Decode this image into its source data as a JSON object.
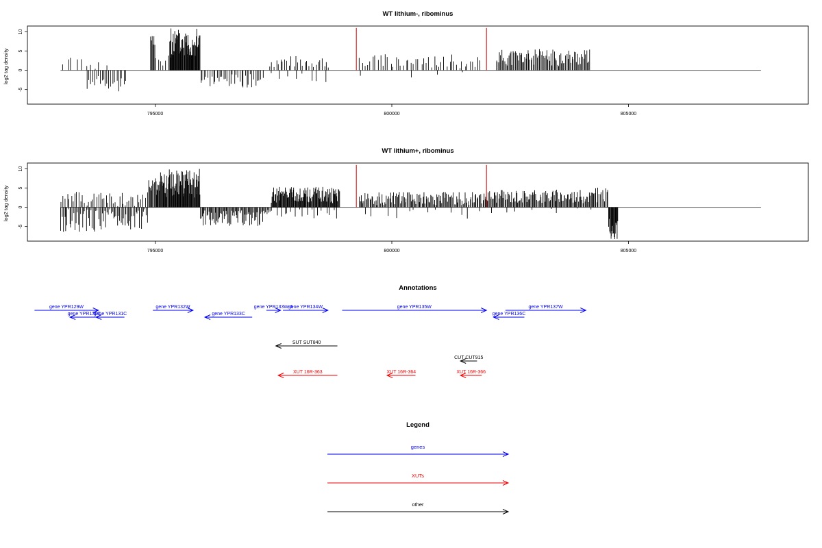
{
  "chart_data": [
    {
      "type": "bar",
      "title": "WT lithium-, ribominus",
      "ylabel": "log2 tag density",
      "xlim": [
        792300,
        808800
      ],
      "ylim": [
        -8.8,
        11.5
      ],
      "baseline_x": [
        793000,
        807800
      ],
      "yticks": [
        -5,
        0,
        5,
        10
      ],
      "ytick_labels": [
        "-5",
        "0",
        "5",
        "10"
      ],
      "xticks": [
        795000,
        800000,
        805000
      ],
      "xtick_labels": [
        "795000",
        "800000",
        "805000"
      ],
      "grid": false,
      "bar_color": "#000000",
      "red_markers": [
        799250,
        802000
      ],
      "red_marker_value": 11,
      "red_color": "#cc0000",
      "segments": [
        {
          "start": 793000,
          "end": 794000,
          "low": 0.3,
          "high": 3.5,
          "n": 10,
          "seed": 1
        },
        {
          "start": 793550,
          "end": 794400,
          "low": -5.5,
          "high": -1.5,
          "n": 22,
          "seed": 2
        },
        {
          "start": 794900,
          "end": 795000,
          "low": 5,
          "high": 9,
          "n": 6,
          "seed": 3
        },
        {
          "start": 795000,
          "end": 795300,
          "low": 0.5,
          "high": 4,
          "n": 6,
          "seed": 4
        },
        {
          "start": 795300,
          "end": 795950,
          "low": 3,
          "high": 11,
          "n": 60,
          "seed": 5
        },
        {
          "start": 795950,
          "end": 797300,
          "low": -4.5,
          "high": -1,
          "n": 36,
          "seed": 6
        },
        {
          "start": 797400,
          "end": 798700,
          "low": 0.5,
          "high": 3.8,
          "n": 28,
          "seed": 7
        },
        {
          "start": 797400,
          "end": 798700,
          "low": -3.5,
          "high": -0.5,
          "n": 8,
          "seed": 8
        },
        {
          "start": 799300,
          "end": 801900,
          "low": 0.5,
          "high": 4.2,
          "n": 48,
          "seed": 9
        },
        {
          "start": 799300,
          "end": 801900,
          "low": -2.5,
          "high": -0.5,
          "n": 4,
          "seed": 10
        },
        {
          "start": 802200,
          "end": 804200,
          "low": 1,
          "high": 5.5,
          "n": 90,
          "seed": 11
        }
      ]
    },
    {
      "type": "bar",
      "title": "WT lithium+, ribominus",
      "ylabel": "log2 tag density",
      "xlim": [
        792300,
        808800
      ],
      "ylim": [
        -8.8,
        11.5
      ],
      "baseline_x": [
        793000,
        807800
      ],
      "yticks": [
        -5,
        0,
        5,
        10
      ],
      "ytick_labels": [
        "-5",
        "0",
        "5",
        "10"
      ],
      "xticks": [
        795000,
        800000,
        805000
      ],
      "xtick_labels": [
        "795000",
        "800000",
        "805000"
      ],
      "grid": false,
      "bar_color": "#000000",
      "red_markers": [
        799250,
        802000
      ],
      "red_marker_value": 11,
      "red_color": "#cc0000",
      "segments": [
        {
          "start": 793000,
          "end": 794850,
          "low": 0.3,
          "high": 4,
          "n": 45,
          "seed": 21
        },
        {
          "start": 793000,
          "end": 794850,
          "low": -6.5,
          "high": -0.5,
          "n": 70,
          "seed": 22
        },
        {
          "start": 794850,
          "end": 795000,
          "low": 1,
          "high": 8,
          "n": 8,
          "seed": 23
        },
        {
          "start": 795000,
          "end": 795950,
          "low": 2.5,
          "high": 10,
          "n": 85,
          "seed": 24
        },
        {
          "start": 795950,
          "end": 797300,
          "low": -5,
          "high": -0.8,
          "n": 70,
          "seed": 25
        },
        {
          "start": 797300,
          "end": 797450,
          "low": -2,
          "high": -0.5,
          "n": 6,
          "seed": 26
        },
        {
          "start": 797450,
          "end": 798900,
          "low": 1,
          "high": 5.3,
          "n": 110,
          "seed": 27
        },
        {
          "start": 797450,
          "end": 798900,
          "low": -3,
          "high": -0.5,
          "n": 18,
          "seed": 28
        },
        {
          "start": 799300,
          "end": 802000,
          "low": 0.5,
          "high": 4,
          "n": 130,
          "seed": 29
        },
        {
          "start": 799300,
          "end": 802000,
          "low": -3,
          "high": -0.3,
          "n": 12,
          "seed": 30
        },
        {
          "start": 802000,
          "end": 804300,
          "low": 1,
          "high": 4.6,
          "n": 120,
          "seed": 31
        },
        {
          "start": 802000,
          "end": 804300,
          "low": -1.5,
          "high": -0.3,
          "n": 8,
          "seed": 32
        },
        {
          "start": 804300,
          "end": 804580,
          "low": 1,
          "high": 5.8,
          "n": 12,
          "seed": 33
        },
        {
          "start": 804580,
          "end": 804780,
          "low": -8.5,
          "high": -3,
          "n": 18,
          "seed": 34
        }
      ]
    },
    {
      "type": "annotation_track",
      "title": "Annotations",
      "xlim": [
        792300,
        808800
      ],
      "features": [
        {
          "label": "gene YPR129W",
          "start": 792450,
          "end": 793800,
          "strand": "+",
          "row": 0,
          "color": "#0000ee"
        },
        {
          "label": "gene YPR130C",
          "start": 793200,
          "end": 793800,
          "strand": "-",
          "row": 1,
          "color": "#0000ee"
        },
        {
          "label": "gene YPR131C",
          "start": 793750,
          "end": 794350,
          "strand": "-",
          "row": 1,
          "color": "#0000ee"
        },
        {
          "label": "gene YPR132W",
          "start": 794950,
          "end": 795800,
          "strand": "+",
          "row": 0,
          "color": "#0000ee"
        },
        {
          "label": "gene YPR133C",
          "start": 796050,
          "end": 797050,
          "strand": "-",
          "row": 1,
          "color": "#0000ee"
        },
        {
          "label": "gene YPR133W-A",
          "start": 797350,
          "end": 797650,
          "strand": "+",
          "row": 0,
          "color": "#0000ee"
        },
        {
          "label": "gene YPR134W",
          "start": 797700,
          "end": 798650,
          "strand": "+",
          "row": 0,
          "color": "#0000ee"
        },
        {
          "label": "gene YPR135W",
          "start": 798950,
          "end": 802000,
          "strand": "+",
          "row": 0,
          "color": "#0000ee"
        },
        {
          "label": "gene YPR136C",
          "start": 802150,
          "end": 802800,
          "strand": "-",
          "row": 1,
          "color": "#0000ee"
        },
        {
          "label": "gene YPR137W",
          "start": 802400,
          "end": 804100,
          "strand": "+",
          "row": 0,
          "color": "#0000ee"
        },
        {
          "label": "SUT SUT840",
          "start": 797550,
          "end": 798850,
          "strand": "-",
          "row": 3,
          "color": "#000000"
        },
        {
          "label": "CUT CUT915",
          "start": 801450,
          "end": 801800,
          "strand": "-",
          "row": 4,
          "color": "#000000"
        },
        {
          "label": "XUT 16R-363",
          "start": 797600,
          "end": 798850,
          "strand": "-",
          "row": 5,
          "color": "#ee0000"
        },
        {
          "label": "XUT 16R-364",
          "start": 799900,
          "end": 800500,
          "strand": "-",
          "row": 5,
          "color": "#ee0000"
        },
        {
          "label": "XUT 16R-366",
          "start": 801450,
          "end": 801900,
          "strand": "-",
          "row": 5,
          "color": "#ee0000"
        }
      ]
    },
    {
      "type": "legend",
      "title": "Legend",
      "entries": [
        {
          "label": "genes",
          "color": "#0000ee"
        },
        {
          "label": "XUTs",
          "color": "#ee0000"
        },
        {
          "label": "other",
          "color": "#000000"
        }
      ]
    }
  ]
}
